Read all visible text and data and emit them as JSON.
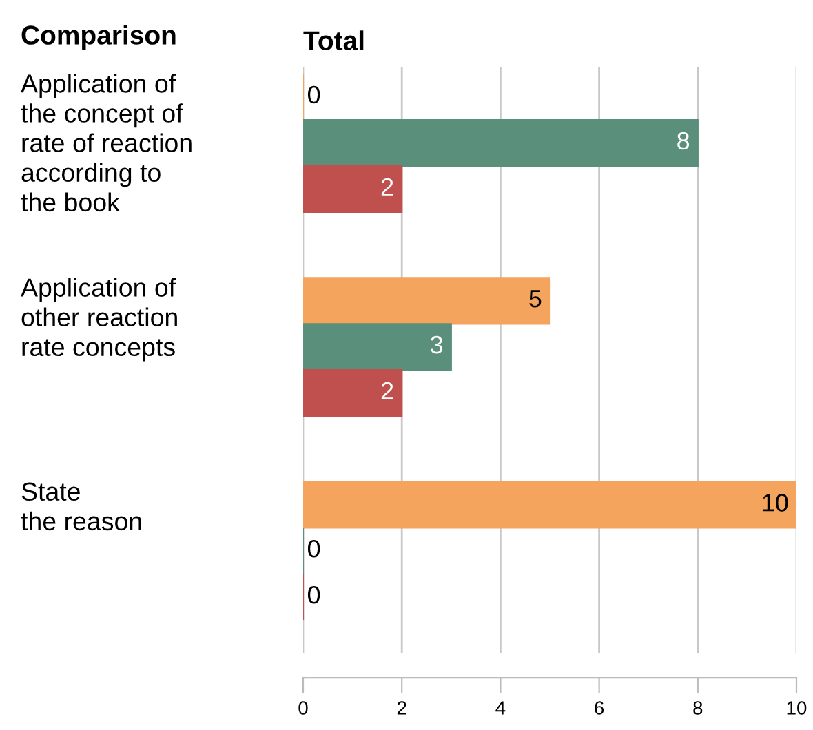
{
  "chart_data": {
    "type": "bar",
    "orientation": "horizontal",
    "xlabel": "Total",
    "ylabel": "Comparison",
    "categories": [
      "Application of\nthe concept of\nrate of reaction\naccording to\nthe book",
      "Application of\nother reaction\nrate concepts",
      "State\nthe reason"
    ],
    "series": [
      {
        "color": "#f4a45c",
        "values": [
          0,
          5,
          10
        ]
      },
      {
        "color": "#5a8f7b",
        "values": [
          8,
          3,
          0
        ]
      },
      {
        "color": "#c0504d",
        "values": [
          2,
          2,
          0
        ]
      }
    ],
    "xlim": [
      0,
      10
    ],
    "xticks": [
      0,
      2,
      4,
      6,
      8,
      10
    ],
    "grid": "x",
    "data_labels": true,
    "legend": false
  }
}
